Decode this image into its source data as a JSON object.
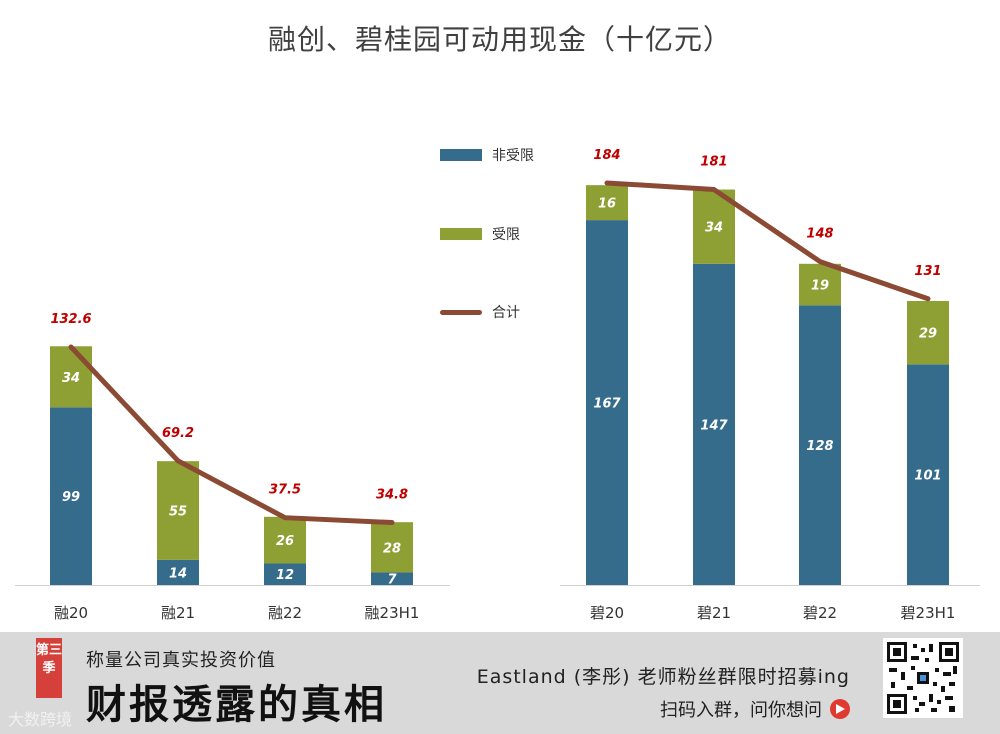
{
  "title": "融创、碧桂园可动用现金（十亿元）",
  "legend": [
    {
      "label": "非受限",
      "color": "#356c8c",
      "kind": "bar"
    },
    {
      "label": "受限",
      "color": "#8ea033",
      "kind": "bar"
    },
    {
      "label": "合计",
      "color": "#8b4a34",
      "kind": "line"
    }
  ],
  "chart_data": [
    {
      "type": "bar",
      "stacked": true,
      "categories": [
        "融20",
        "融21",
        "融22",
        "融23H1"
      ],
      "series": [
        {
          "name": "非受限",
          "values": [
            99,
            14,
            12,
            7
          ]
        },
        {
          "name": "受限",
          "values": [
            34,
            55,
            26,
            28
          ]
        }
      ],
      "total": {
        "name": "合计",
        "values": [
          132.6,
          69.2,
          37.5,
          34.8
        ]
      }
    },
    {
      "type": "bar",
      "stacked": true,
      "categories": [
        "碧20",
        "碧21",
        "碧22",
        "碧23H1"
      ],
      "series": [
        {
          "name": "非受限",
          "values": [
            167,
            147,
            128,
            101
          ]
        },
        {
          "name": "受限",
          "values": [
            16,
            34,
            19,
            29
          ]
        }
      ],
      "total": {
        "name": "合计",
        "values": [
          184,
          181,
          148,
          131
        ]
      }
    }
  ],
  "banner": {
    "season": "第三季",
    "slogan_small": "称量公司真实投资价值",
    "slogan_big": "财报透露的真相",
    "watermark": "大数跨境",
    "recruit": "Eastland (李彤) 老师粉丝群限时招募ing",
    "scan": "扫码入群，问你想问"
  },
  "colors": {
    "bar_unrestricted": "#356c8c",
    "bar_restricted": "#8ea033",
    "line_total": "#8b4a34",
    "total_label": "#c00000",
    "banner_bg": "#d9d9d9",
    "badge": "#d6403a"
  }
}
